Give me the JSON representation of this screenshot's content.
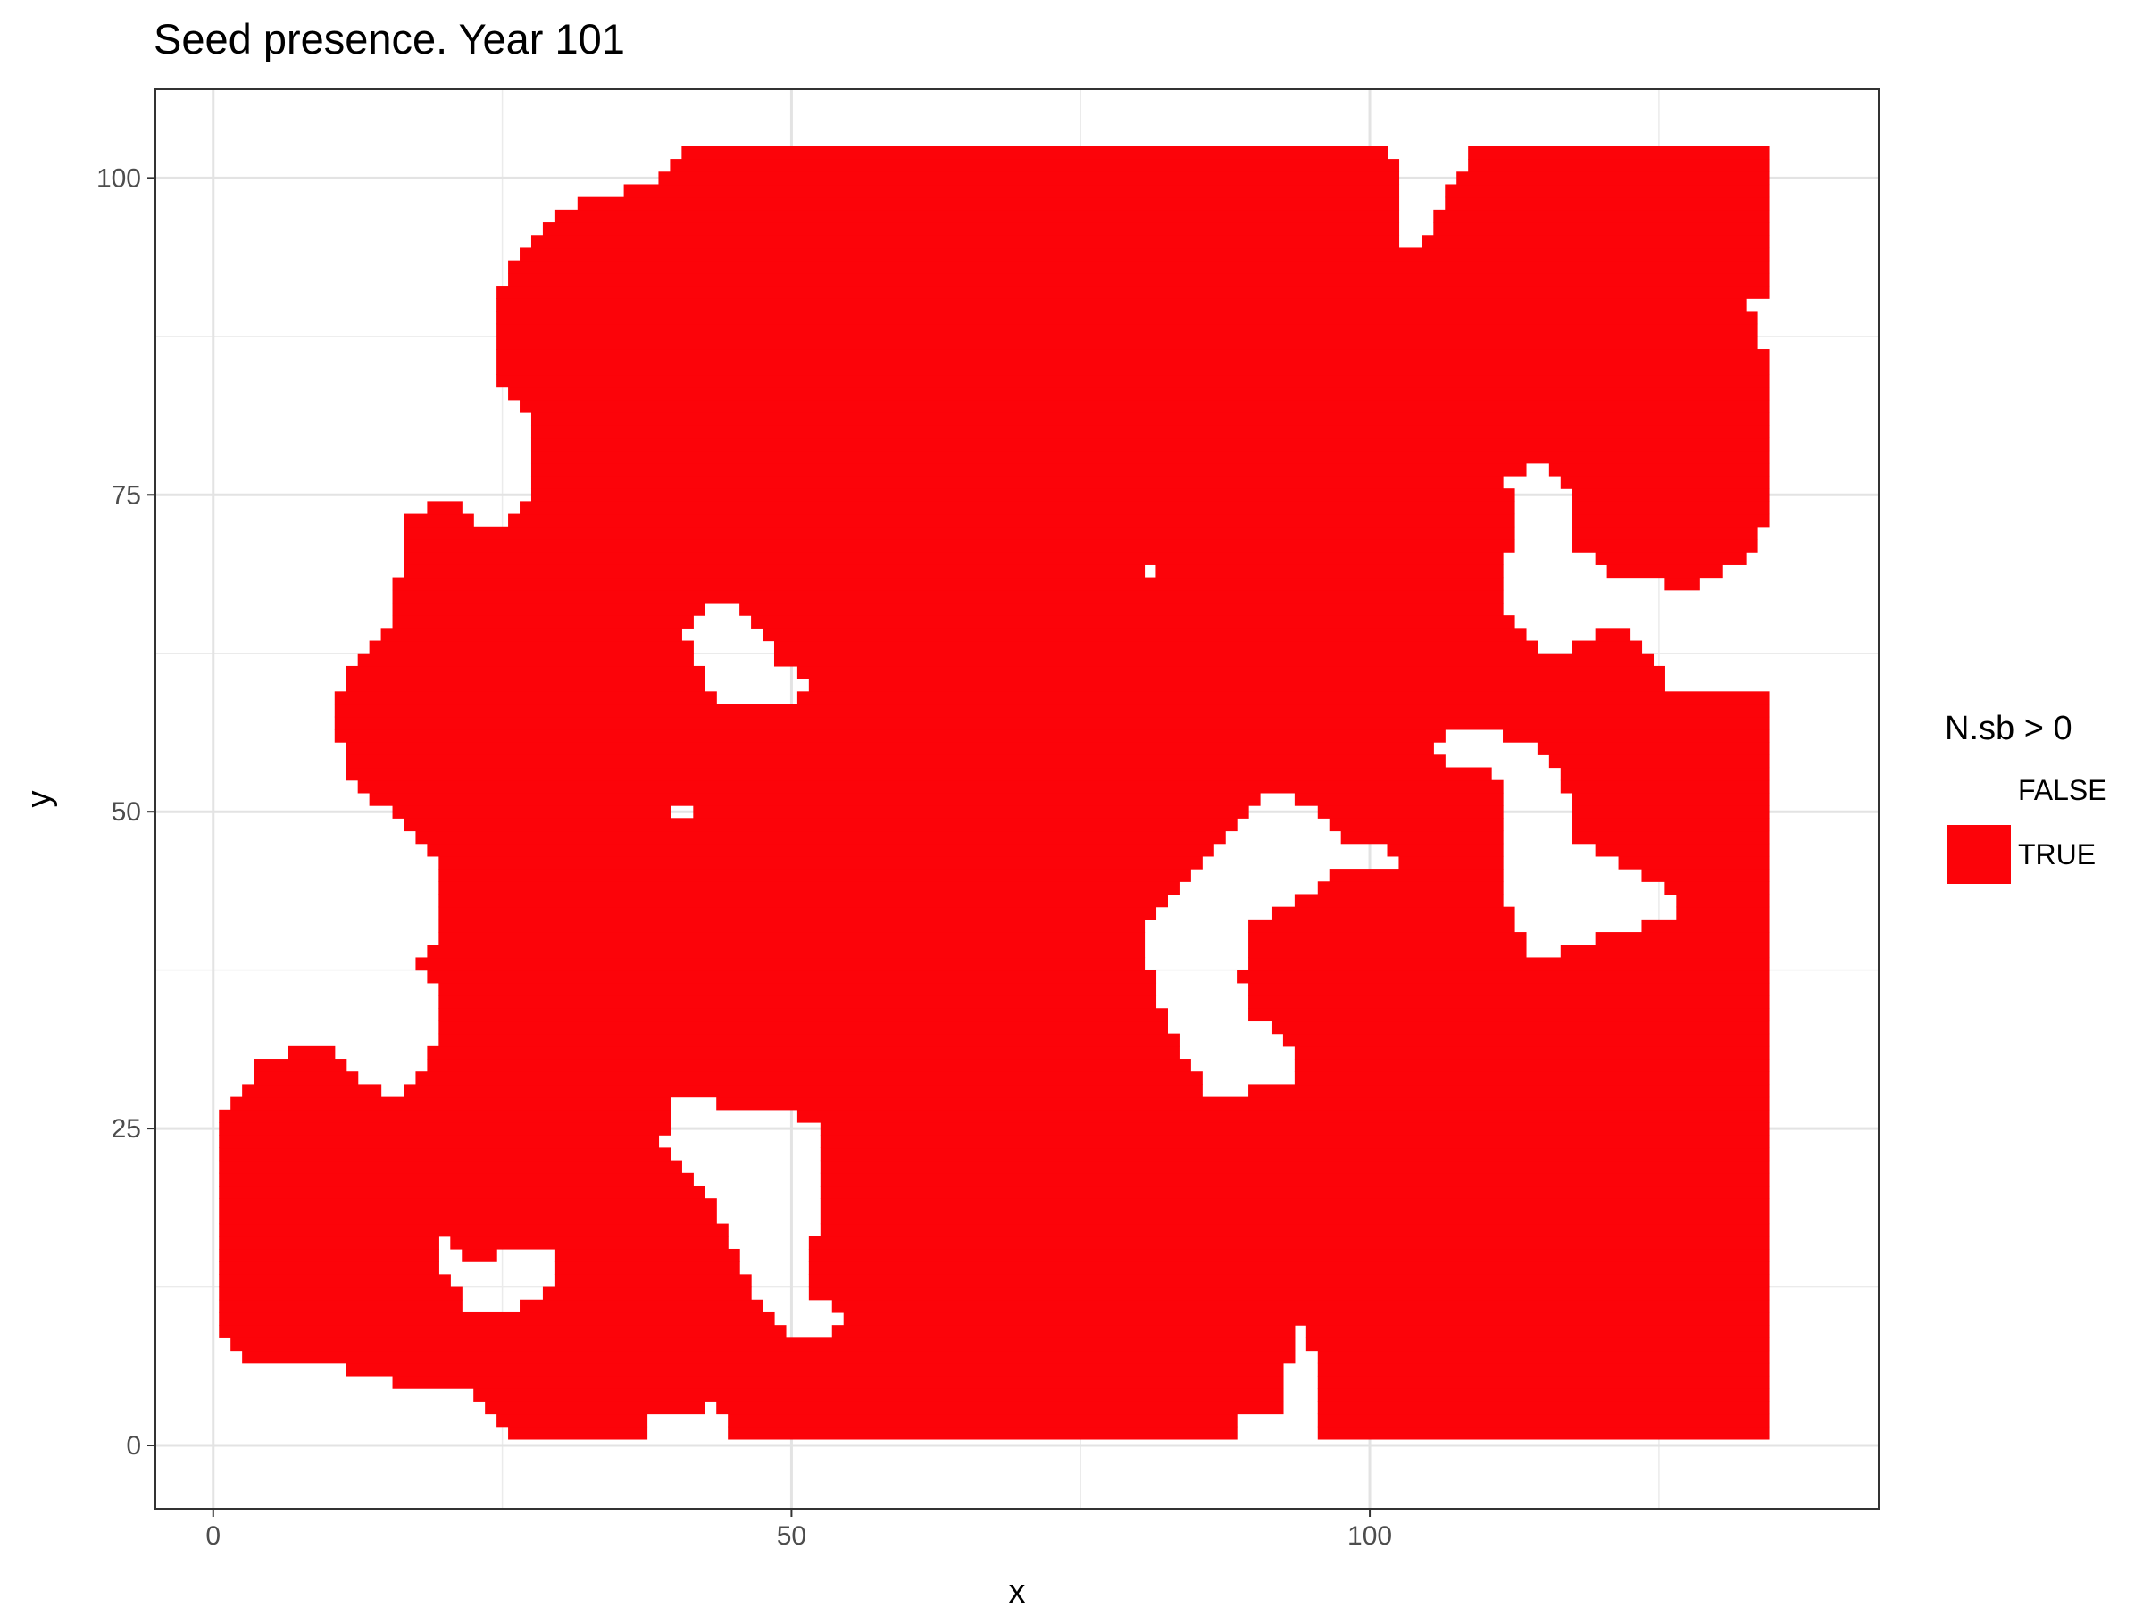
{
  "chart_data": {
    "type": "heatmap",
    "title": "Seed presence. Year 101",
    "xlabel": "x",
    "ylabel": "y",
    "xlim": [
      -5,
      144
    ],
    "ylim": [
      -5,
      107
    ],
    "x_ticks": [
      0,
      50,
      100
    ],
    "y_ticks": [
      0,
      25,
      50,
      75,
      100
    ],
    "x_tick_labels": [
      "0",
      "50",
      "100"
    ],
    "y_tick_labels": [
      "0",
      "25",
      "50",
      "75",
      "100"
    ],
    "grid": true,
    "legend": {
      "title": "N.sb > 0",
      "placement": "right",
      "entries": [
        {
          "label": "FALSE",
          "color": "#ffffff"
        },
        {
          "label": "TRUE",
          "color": "#fc0309"
        }
      ]
    },
    "cell_size": 1,
    "fill_color": "#fc0309",
    "true_region": {
      "description_scale": "data units",
      "outer_boundary": [
        [
          0.5,
          9.5
        ],
        [
          2,
          8
        ],
        [
          3,
          7
        ],
        [
          5,
          6.5
        ],
        [
          8,
          6.5
        ],
        [
          10,
          7
        ],
        [
          12,
          6
        ],
        [
          16,
          5
        ],
        [
          22,
          4.5
        ],
        [
          26,
          0.5
        ],
        [
          37,
          0.5
        ],
        [
          38,
          3
        ],
        [
          42,
          2
        ],
        [
          43,
          4
        ],
        [
          45,
          0.5
        ],
        [
          89,
          0.5
        ],
        [
          89,
          3
        ],
        [
          92,
          2.5
        ],
        [
          93,
          6
        ],
        [
          94,
          10
        ],
        [
          96,
          6
        ],
        [
          96,
          0.5
        ],
        [
          135,
          0.5
        ],
        [
          135,
          24
        ],
        [
          134.5,
          25
        ],
        [
          135,
          26
        ],
        [
          135,
          59.5
        ],
        [
          126,
          59.5
        ],
        [
          125,
          62
        ],
        [
          122,
          65
        ],
        [
          124,
          67
        ],
        [
          128,
          67.5
        ],
        [
          133,
          70
        ],
        [
          135,
          75
        ],
        [
          135,
          84
        ],
        [
          134,
          87
        ],
        [
          133,
          90
        ],
        [
          135,
          90.5
        ],
        [
          135,
          102.5
        ],
        [
          109,
          102.5
        ],
        [
          107,
          99
        ],
        [
          105,
          95
        ],
        [
          102,
          94
        ],
        [
          103,
          100.5
        ],
        [
          101,
          102.5
        ],
        [
          41,
          102.5
        ],
        [
          39,
          100
        ],
        [
          36,
          99
        ],
        [
          32,
          98
        ],
        [
          30,
          97
        ],
        [
          28,
          95
        ],
        [
          26,
          93
        ],
        [
          25,
          91
        ],
        [
          25,
          84
        ],
        [
          27,
          82
        ],
        [
          28,
          78
        ],
        [
          27,
          74
        ],
        [
          24,
          72
        ],
        [
          22,
          74
        ],
        [
          19,
          74.5
        ],
        [
          17,
          73
        ],
        [
          16,
          68
        ],
        [
          15,
          64
        ],
        [
          12,
          61.5
        ],
        [
          11,
          59
        ],
        [
          11,
          56
        ],
        [
          12,
          53
        ],
        [
          14,
          51
        ],
        [
          17,
          49
        ],
        [
          19,
          47
        ],
        [
          20,
          45
        ],
        [
          20,
          40
        ],
        [
          18,
          38
        ],
        [
          20,
          35
        ],
        [
          19,
          31
        ],
        [
          16,
          27
        ],
        [
          13,
          29
        ],
        [
          11,
          31
        ],
        [
          8,
          31.5
        ],
        [
          4,
          30
        ],
        [
          2,
          27
        ],
        [
          0.5,
          25.5
        ]
      ],
      "holes": [
        [
          [
            41,
            64
          ],
          [
            44,
            67
          ],
          [
            47,
            65
          ],
          [
            49,
            62
          ],
          [
            52,
            60
          ],
          [
            50,
            58
          ],
          [
            47,
            59
          ],
          [
            45,
            58
          ],
          [
            43,
            60
          ],
          [
            42,
            62
          ]
        ],
        [
          [
            40,
            50
          ],
          [
            41,
            51
          ],
          [
            42,
            50
          ],
          [
            41,
            49
          ]
        ],
        [
          [
            80.5,
            69.5
          ],
          [
            81.5,
            69.5
          ],
          [
            81.5,
            68.5
          ],
          [
            80.5,
            68.5
          ]
        ],
        [
          [
            81,
            41
          ],
          [
            83,
            43
          ],
          [
            85,
            45
          ],
          [
            88,
            48
          ],
          [
            90,
            50
          ],
          [
            92,
            52
          ],
          [
            94,
            51
          ],
          [
            98,
            48
          ],
          [
            102,
            47
          ],
          [
            103,
            46
          ],
          [
            97,
            45
          ],
          [
            94,
            43
          ],
          [
            90,
            41
          ],
          [
            89,
            37
          ],
          [
            90,
            34
          ],
          [
            93,
            32
          ],
          [
            94,
            29
          ],
          [
            90,
            28
          ],
          [
            86,
            28
          ],
          [
            84,
            31
          ],
          [
            82,
            35
          ],
          [
            81,
            38
          ]
        ],
        [
          [
            106,
            55
          ],
          [
            108,
            57
          ],
          [
            112,
            56
          ],
          [
            115,
            55
          ],
          [
            117,
            52
          ],
          [
            118,
            48
          ],
          [
            122,
            46
          ],
          [
            126,
            44
          ],
          [
            127,
            42
          ],
          [
            124,
            41
          ],
          [
            120,
            40
          ],
          [
            117,
            39
          ],
          [
            114,
            39
          ],
          [
            112,
            43
          ],
          [
            112,
            48
          ],
          [
            111,
            53
          ],
          [
            107,
            54
          ]
        ],
        [
          [
            115,
            78
          ],
          [
            117,
            76
          ],
          [
            118,
            74
          ],
          [
            118,
            71
          ],
          [
            121,
            69
          ],
          [
            126,
            68
          ],
          [
            122,
            65
          ],
          [
            118,
            63
          ],
          [
            115,
            63
          ],
          [
            112,
            66
          ],
          [
            112,
            70
          ],
          [
            113,
            74
          ],
          [
            112,
            76
          ]
        ],
        [
          [
            39,
            24
          ],
          [
            40,
            28
          ],
          [
            42,
            28
          ],
          [
            45,
            26
          ],
          [
            49,
            27
          ],
          [
            53,
            25
          ],
          [
            53,
            20
          ],
          [
            52,
            16
          ],
          [
            52,
            12
          ],
          [
            55,
            10
          ],
          [
            53,
            8
          ],
          [
            50,
            9
          ],
          [
            47,
            12
          ],
          [
            45,
            16
          ],
          [
            43,
            20
          ],
          [
            40,
            23
          ]
        ],
        [
          [
            19,
            18
          ],
          [
            21,
            16
          ],
          [
            23,
            14
          ],
          [
            25,
            15
          ],
          [
            27,
            16
          ],
          [
            30,
            15
          ],
          [
            29,
            12
          ],
          [
            27,
            11
          ],
          [
            24,
            10
          ],
          [
            22,
            11
          ],
          [
            20,
            14
          ]
        ]
      ]
    }
  }
}
